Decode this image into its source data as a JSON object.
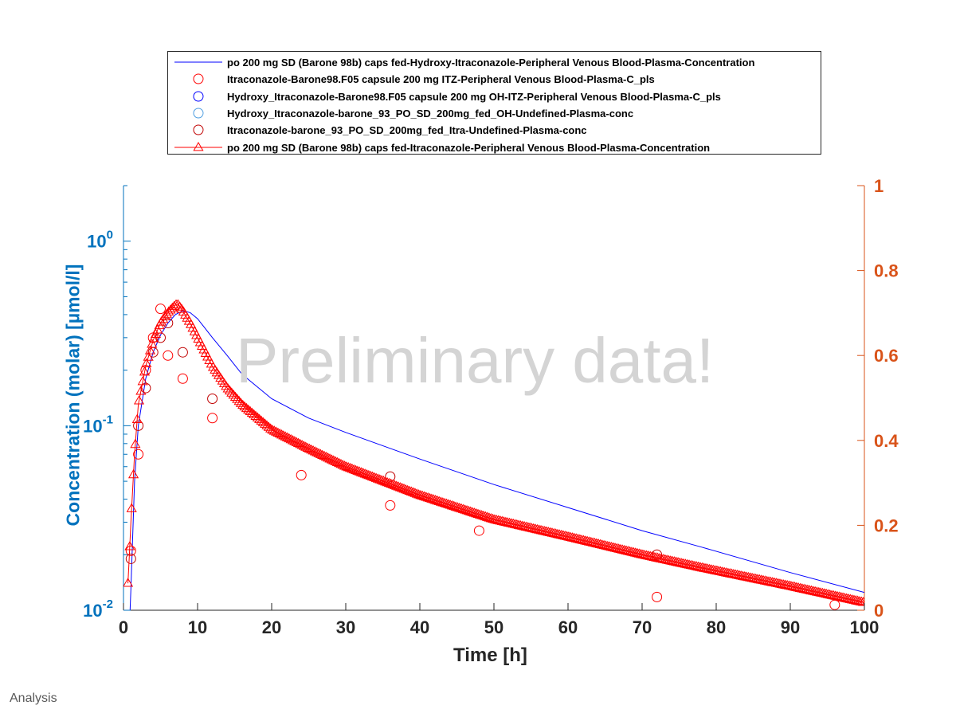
{
  "chart_data": {
    "type": "line",
    "watermark": "Preliminary data!",
    "footer": "Analysis",
    "xlabel": "Time [h]",
    "ylabel_left": "Concentration (molar) [µmol/l]",
    "ylabel_right": "",
    "xlim": [
      0,
      100
    ],
    "ylim_left": [
      0.01,
      2
    ],
    "yscale_left": "log",
    "ylim_right": [
      0,
      1
    ],
    "x_ticks": [
      0,
      10,
      20,
      30,
      40,
      50,
      60,
      70,
      80,
      90,
      100
    ],
    "y_ticks_left": [
      {
        "value": 1,
        "base": "10",
        "exp": "0"
      },
      {
        "value": 0.1,
        "base": "10",
        "exp": "-1"
      },
      {
        "value": 0.01,
        "base": "10",
        "exp": "-2"
      }
    ],
    "y_ticks_right": [
      "0",
      "0.2",
      "0.4",
      "0.6",
      "0.8",
      "1"
    ],
    "legend_position": "top",
    "colors": {
      "left_axis": "#0072bd",
      "right_axis": "#d95319",
      "hydroxy_sim": "#0000ff",
      "itra_sim": "#ff0000"
    },
    "series": [
      {
        "name": "po 200 mg SD (Barone 98b) caps fed-Hydroxy-Itraconazole-Peripheral Venous Blood-Plasma-Concentration",
        "kind": "line",
        "color": "#0000ff",
        "x": [
          0.8,
          1,
          1.5,
          2,
          3,
          4,
          5,
          6,
          7,
          8,
          9,
          10,
          12,
          14,
          16,
          20,
          25,
          30,
          40,
          50,
          60,
          70,
          78,
          90,
          100
        ],
        "y": [
          0.008,
          0.013,
          0.05,
          0.1,
          0.18,
          0.25,
          0.31,
          0.36,
          0.4,
          0.42,
          0.41,
          0.38,
          0.3,
          0.24,
          0.19,
          0.14,
          0.11,
          0.092,
          0.066,
          0.048,
          0.036,
          0.027,
          0.022,
          0.016,
          0.0125
        ]
      },
      {
        "name": "Itraconazole-Barone98.F05 capsule 200 mg ITZ-Peripheral Venous Blood-Plasma-C_pls",
        "kind": "marker-circle",
        "color": "#ff0000",
        "x": [
          1,
          2,
          3,
          4,
          5,
          6,
          8,
          12,
          24,
          36,
          48,
          72,
          96
        ],
        "y": [
          0.021,
          0.07,
          0.2,
          0.3,
          0.43,
          0.24,
          0.18,
          0.11,
          0.054,
          0.037,
          0.027,
          0.0118,
          0.0107
        ]
      },
      {
        "name": "Hydroxy_Itraconazole-Barone98.F05 capsule 200 mg OH-ITZ-Peripheral Venous Blood-Plasma-C_pls",
        "kind": "marker-circle",
        "color": "#0000ff",
        "x": [],
        "y": []
      },
      {
        "name": "Hydroxy_Itraconazole-barone_93_PO_SD_200mg_fed_OH-Undefined-Plasma-conc",
        "kind": "marker-circle",
        "color": "#4d9de0",
        "x": [],
        "y": []
      },
      {
        "name": "Itraconazole-barone_93_PO_SD_200mg_fed_Itra-Undefined-Plasma-conc",
        "kind": "marker-circle",
        "color": "#c00000",
        "x": [
          1,
          2,
          3,
          4,
          5,
          6,
          8,
          12,
          36,
          72
        ],
        "y": [
          0.019,
          0.1,
          0.16,
          0.25,
          0.3,
          0.36,
          0.25,
          0.14,
          0.053,
          0.02
        ]
      },
      {
        "name": "po 200 mg SD (Barone 98b) caps fed-Itraconazole-Peripheral Venous Blood-Plasma-Concentration",
        "kind": "line-triangle",
        "color": "#ff0000",
        "x": [
          0.6,
          0.8,
          1,
          1.5,
          2,
          3,
          4,
          5,
          6,
          7,
          7.3,
          8,
          9,
          10,
          12,
          14,
          16,
          20,
          25,
          30,
          40,
          50,
          60,
          70,
          78,
          90,
          100
        ],
        "y": [
          0.014,
          0.02,
          0.03,
          0.07,
          0.13,
          0.21,
          0.29,
          0.36,
          0.41,
          0.45,
          0.455,
          0.42,
          0.36,
          0.3,
          0.21,
          0.16,
          0.13,
          0.095,
          0.075,
          0.06,
          0.042,
          0.031,
          0.025,
          0.02,
          0.017,
          0.0135,
          0.011
        ]
      }
    ]
  }
}
